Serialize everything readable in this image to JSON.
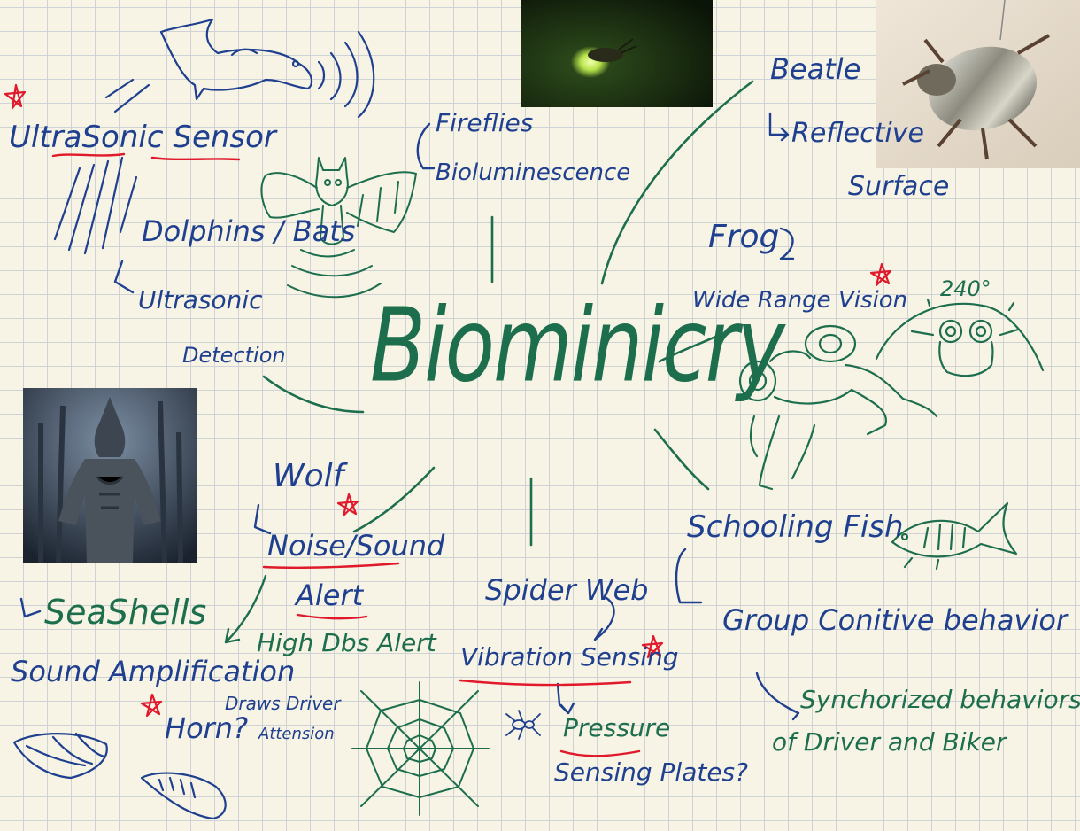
{
  "colors": {
    "paper": "#f7f4e6",
    "grid": "#cfd3d6",
    "ink_blue": "#1f3f8f",
    "ink_green": "#1d6e4d",
    "ink_red": "#e0192b"
  },
  "central_topic": "Biominicry",
  "nodes": {
    "ultrasonic": {
      "title": "UltraSonic Sensor",
      "animals": "Dolphins / Bats",
      "arrow_line_1": "Ultrasonic",
      "arrow_line_2": "Detection"
    },
    "fireflies": {
      "title": "Fireflies",
      "subtitle": "Bioluminescence"
    },
    "beetle": {
      "title": "Beatle",
      "arrow_line_1": "Reflective",
      "arrow_line_2": "Surface"
    },
    "frog": {
      "title": "Frog",
      "subtitle": "Wide Range Vision",
      "angle_label": "240°"
    },
    "wolf": {
      "title": "Wolf",
      "line_1": "Noise/Sound",
      "line_2": "Alert",
      "sub_1": "High Dbs Alert",
      "sub_2": "Draws Driver",
      "sub_3": "Attension"
    },
    "seashells": {
      "title": "SeaShells",
      "line_1": "Sound Amplification",
      "line_2": "Horn?"
    },
    "spider": {
      "title": "Spider Web",
      "line_1": "Vibration Sensing",
      "line_2": "Pressure",
      "line_3": "Sensing Plates?"
    },
    "fish": {
      "title": "Schooling Fish",
      "line_1": "Group Conitive behavior",
      "line_2": "Synchorized behaviors",
      "line_3": "of Driver and Biker"
    }
  },
  "icons": [
    "dolphin-sketch-icon",
    "bat-sketch-icon",
    "frog-sketch-icon",
    "fish-sketch-icon",
    "spider-web-sketch-icon",
    "spider-sketch-icon",
    "seashell-sketch-icon",
    "sound-waves-icon",
    "priority-star-icon"
  ]
}
